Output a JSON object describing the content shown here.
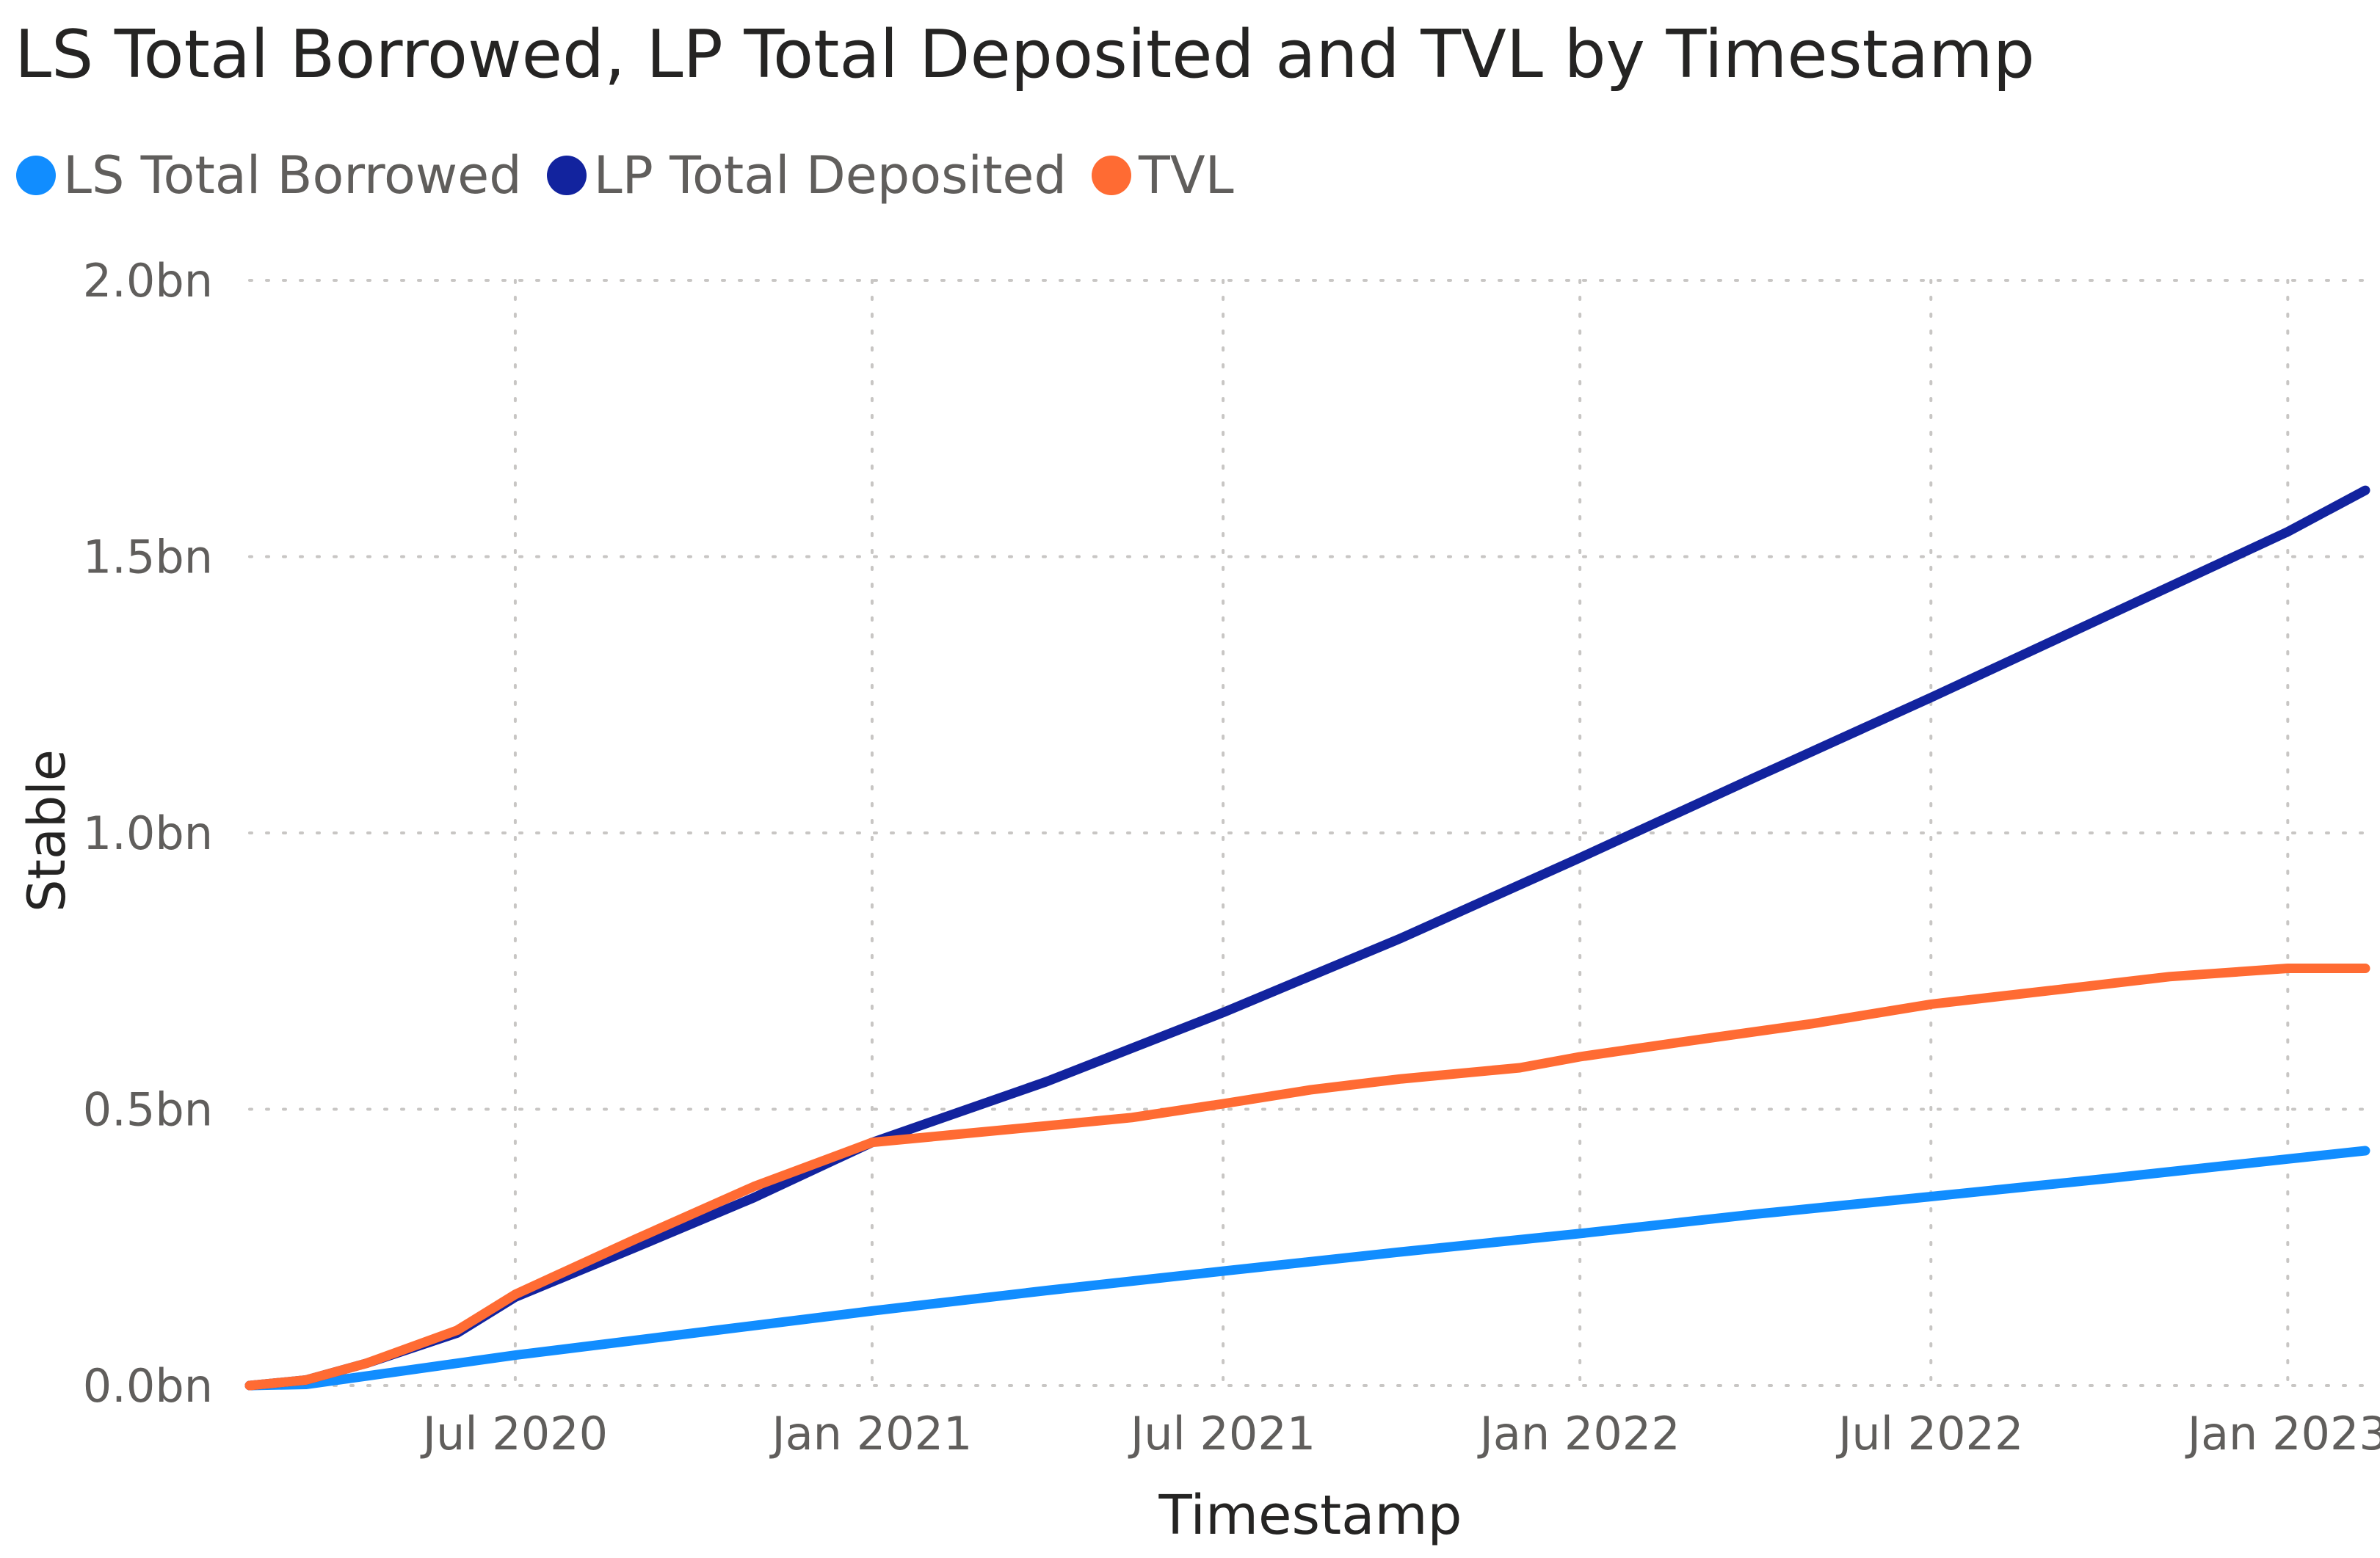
{
  "chart_data": {
    "type": "line",
    "title": "LS Total Borrowed, LP Total Deposited and TVL by Timestamp",
    "xlabel": "Timestamp",
    "ylabel": "Stable",
    "x_type": "date",
    "xlim": [
      "2020-02-15",
      "2023-02-10"
    ],
    "ylim": [
      0,
      2.0
    ],
    "y_unit": "bn",
    "yticks": [
      {
        "value": 0.0,
        "label": "0.0bn"
      },
      {
        "value": 0.5,
        "label": "0.5bn"
      },
      {
        "value": 1.0,
        "label": "1.0bn"
      },
      {
        "value": 1.5,
        "label": "1.5bn"
      },
      {
        "value": 2.0,
        "label": "2.0bn"
      }
    ],
    "xticks": [
      {
        "value": "2020-07-01",
        "label": "Jul 2020"
      },
      {
        "value": "2021-01-01",
        "label": "Jan 2021"
      },
      {
        "value": "2021-07-01",
        "label": "Jul 2021"
      },
      {
        "value": "2022-01-01",
        "label": "Jan 2022"
      },
      {
        "value": "2022-07-01",
        "label": "Jul 2022"
      },
      {
        "value": "2023-01-01",
        "label": "Jan 2023"
      }
    ],
    "grid": true,
    "legend_position": "top-left",
    "series": [
      {
        "name": "LS Total Borrowed",
        "color": "#118DFF",
        "points": [
          [
            "2020-02-15",
            0.0
          ],
          [
            "2020-03-15",
            0.002
          ],
          [
            "2020-05-01",
            0.025
          ],
          [
            "2020-07-01",
            0.055
          ],
          [
            "2020-10-01",
            0.095
          ],
          [
            "2021-01-01",
            0.135
          ],
          [
            "2021-04-01",
            0.172
          ],
          [
            "2021-07-01",
            0.207
          ],
          [
            "2021-10-01",
            0.242
          ],
          [
            "2022-01-01",
            0.275
          ],
          [
            "2022-04-01",
            0.31
          ],
          [
            "2022-07-01",
            0.342
          ],
          [
            "2022-10-01",
            0.375
          ],
          [
            "2023-01-01",
            0.41
          ],
          [
            "2023-02-10",
            0.425
          ]
        ]
      },
      {
        "name": "LP Total Deposited",
        "color": "#12239E",
        "points": [
          [
            "2020-02-15",
            0.0
          ],
          [
            "2020-03-15",
            0.01
          ],
          [
            "2020-04-15",
            0.04
          ],
          [
            "2020-06-01",
            0.095
          ],
          [
            "2020-07-01",
            0.16
          ],
          [
            "2020-09-01",
            0.25
          ],
          [
            "2020-11-01",
            0.34
          ],
          [
            "2021-01-01",
            0.44
          ],
          [
            "2021-04-01",
            0.55
          ],
          [
            "2021-07-01",
            0.675
          ],
          [
            "2021-10-01",
            0.81
          ],
          [
            "2022-01-01",
            0.955
          ],
          [
            "2022-04-01",
            1.1
          ],
          [
            "2022-07-01",
            1.245
          ],
          [
            "2022-10-01",
            1.395
          ],
          [
            "2023-01-01",
            1.545
          ],
          [
            "2023-02-10",
            1.62
          ]
        ]
      },
      {
        "name": "TVL",
        "color": "#FF6B33",
        "points": [
          [
            "2020-02-15",
            0.0
          ],
          [
            "2020-03-15",
            0.01
          ],
          [
            "2020-04-15",
            0.04
          ],
          [
            "2020-06-01",
            0.1
          ],
          [
            "2020-07-01",
            0.165
          ],
          [
            "2020-09-01",
            0.265
          ],
          [
            "2020-11-01",
            0.36
          ],
          [
            "2021-01-01",
            0.44
          ],
          [
            "2021-02-15",
            0.455
          ],
          [
            "2021-04-01",
            0.47
          ],
          [
            "2021-05-15",
            0.485
          ],
          [
            "2021-07-01",
            0.51
          ],
          [
            "2021-08-15",
            0.535
          ],
          [
            "2021-10-01",
            0.555
          ],
          [
            "2021-12-01",
            0.575
          ],
          [
            "2022-01-01",
            0.595
          ],
          [
            "2022-03-01",
            0.625
          ],
          [
            "2022-05-01",
            0.655
          ],
          [
            "2022-07-01",
            0.69
          ],
          [
            "2022-09-01",
            0.715
          ],
          [
            "2022-11-01",
            0.74
          ],
          [
            "2023-01-01",
            0.755
          ],
          [
            "2023-02-10",
            0.755
          ]
        ]
      }
    ]
  }
}
